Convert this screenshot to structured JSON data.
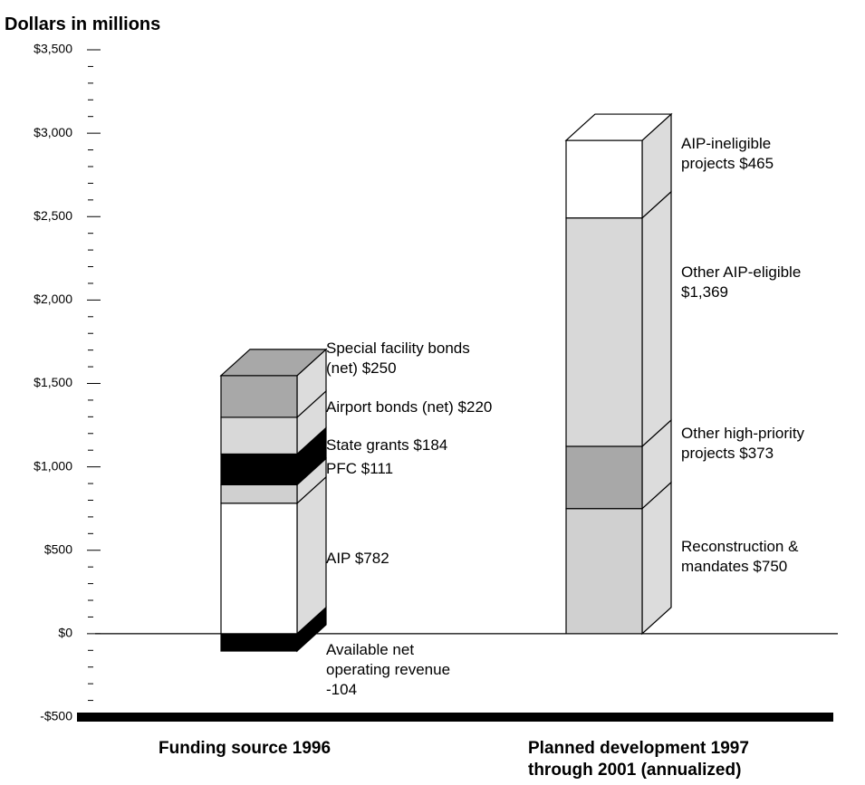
{
  "chart_data": {
    "type": "bar",
    "stacked": true,
    "title": "Dollars in millions",
    "categories": [
      "Funding source 1996",
      "Planned development 1997 through 2001 (annualized)"
    ],
    "ylim": [
      -500,
      3500
    ],
    "yticks": [
      {
        "value": -500,
        "label": "-$500"
      },
      {
        "value": 0,
        "label": "$0"
      },
      {
        "value": 500,
        "label": "$500"
      },
      {
        "value": 1000,
        "label": "$1,000"
      },
      {
        "value": 1500,
        "label": "$1,500"
      },
      {
        "value": 2000,
        "label": "$2,000"
      },
      {
        "value": 2500,
        "label": "$2,500"
      },
      {
        "value": 3000,
        "label": "$3,000"
      },
      {
        "value": 3500,
        "label": "$3,500"
      }
    ],
    "minor_yticks": [
      -400,
      -300,
      -200,
      -100,
      100,
      200,
      300,
      400,
      600,
      700,
      800,
      900,
      1100,
      1200,
      1300,
      1400,
      1600,
      1700,
      1800,
      1900,
      2100,
      2200,
      2300,
      2400,
      2600,
      2700,
      2800,
      2900,
      3100,
      3200,
      3300,
      3400
    ],
    "series": [
      {
        "name": "Available net operating revenue",
        "color": "#000000",
        "values": [
          -104,
          null
        ],
        "value_labels": [
          "-104",
          null
        ]
      },
      {
        "name": "AIP",
        "color": "#ffffff",
        "values": [
          782,
          null
        ],
        "value_labels": [
          "$782",
          null
        ]
      },
      {
        "name": "PFC",
        "color": "#d0d0d0",
        "values": [
          111,
          null
        ],
        "value_labels": [
          "$111",
          null
        ]
      },
      {
        "name": "State grants",
        "color": "#000000",
        "values": [
          184,
          null
        ],
        "value_labels": [
          "$184",
          null
        ]
      },
      {
        "name": "Airport bonds (net)",
        "color": "#d8d8d8",
        "values": [
          220,
          null
        ],
        "value_labels": [
          "$220",
          null
        ]
      },
      {
        "name": "Special facility bonds (net)",
        "color": "#a8a8a8",
        "values": [
          250,
          null
        ],
        "value_labels": [
          "$250",
          null
        ]
      },
      {
        "name": "Reconstruction & mandates",
        "color": "#d0d0d0",
        "values": [
          null,
          750
        ],
        "value_labels": [
          null,
          "$750"
        ]
      },
      {
        "name": "Other high-priority projects",
        "color": "#a8a8a8",
        "values": [
          null,
          373
        ],
        "value_labels": [
          null,
          "$373"
        ]
      },
      {
        "name": "Other AIP-eligible",
        "color": "#d8d8d8",
        "values": [
          null,
          1369
        ],
        "value_labels": [
          null,
          "$1,369"
        ]
      },
      {
        "name": "AIP-ineligible projects",
        "color": "#ffffff",
        "values": [
          null,
          465
        ],
        "value_labels": [
          null,
          "$465"
        ]
      }
    ]
  }
}
